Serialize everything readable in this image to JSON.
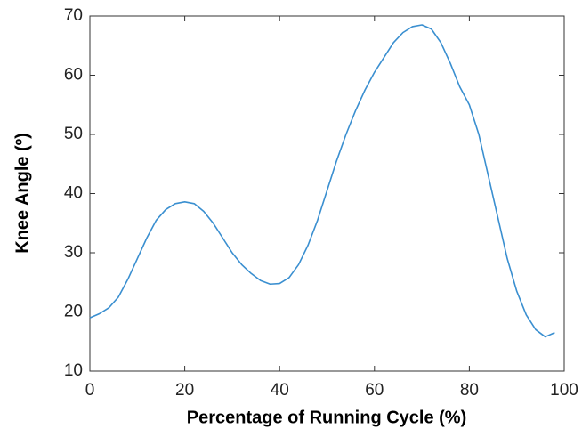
{
  "chart_data": {
    "type": "line",
    "xlabel": "Percentage of Running Cycle (%)",
    "ylabel": "Knee Angle (º)",
    "x": [
      0,
      2,
      4,
      6,
      8,
      10,
      12,
      14,
      16,
      18,
      20,
      22,
      24,
      26,
      28,
      30,
      32,
      34,
      36,
      38,
      40,
      42,
      44,
      46,
      48,
      50,
      52,
      54,
      56,
      58,
      60,
      62,
      64,
      66,
      68,
      70,
      72,
      74,
      76,
      78,
      80,
      82,
      84,
      86,
      88,
      90,
      92,
      94,
      96,
      98
    ],
    "series": [
      {
        "color": "#3a8fd0",
        "values": [
          19,
          19.7,
          20.7,
          22.5,
          25.5,
          29,
          32.5,
          35.5,
          37.3,
          38.3,
          38.6,
          38.3,
          37,
          35,
          32.5,
          30,
          28,
          26.5,
          25.3,
          24.7,
          24.8,
          25.8,
          28,
          31.3,
          35.5,
          40.5,
          45.5,
          50,
          54,
          57.5,
          60.5,
          63,
          65.5,
          67.2,
          68.2,
          68.5,
          67.8,
          65.5,
          62,
          58,
          55,
          50,
          43,
          36,
          29,
          23.5,
          19.5,
          17,
          15.8,
          16.5
        ]
      }
    ],
    "xlim": [
      0,
      100
    ],
    "xticks": [
      0,
      20,
      40,
      60,
      80,
      100
    ],
    "ylim": [
      10,
      70
    ],
    "yticks": [
      10,
      20,
      30,
      40,
      50,
      60,
      70
    ]
  }
}
